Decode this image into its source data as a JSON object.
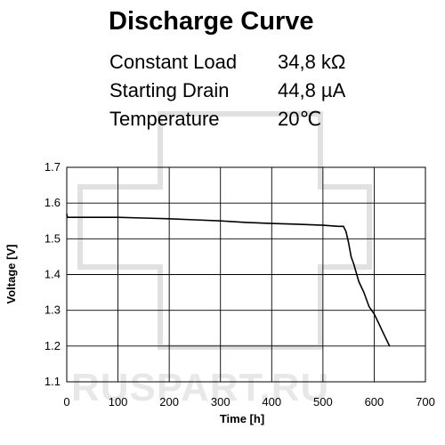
{
  "watermark": {
    "text": "RUSPART.RU"
  },
  "chart_data": {
    "type": "line",
    "title": "Discharge Curve",
    "specs": [
      {
        "label": "Constant Load",
        "value": "34,8 kΩ"
      },
      {
        "label": "Starting Drain",
        "value": "44,8 µA"
      },
      {
        "label": "Temperature",
        "value": "20℃"
      }
    ],
    "xlabel": "Time [h]",
    "ylabel": "Voltage [V]",
    "xlim": [
      0,
      700
    ],
    "ylim": [
      1.1,
      1.7
    ],
    "xticks": [
      0,
      100,
      200,
      300,
      400,
      500,
      600,
      700
    ],
    "yticks": [
      1.1,
      1.2,
      1.3,
      1.4,
      1.5,
      1.6,
      1.7
    ],
    "xtick_labels": [
      "0",
      "100",
      "200",
      "300",
      "400",
      "500",
      "600",
      "700"
    ],
    "ytick_labels": [
      "1.1",
      "1.2",
      "1.3",
      "1.4",
      "1.5",
      "1.6",
      "1.7"
    ],
    "grid": true,
    "series": [
      {
        "x": [
          0,
          1,
          3,
          10,
          50,
          100,
          150,
          200,
          250,
          300,
          350,
          400,
          450,
          500,
          530,
          540,
          545,
          550,
          555,
          560,
          570,
          580,
          590,
          600,
          610,
          620,
          630
        ],
        "y": [
          1.57,
          1.56,
          1.56,
          1.56,
          1.56,
          1.56,
          1.558,
          1.556,
          1.553,
          1.55,
          1.546,
          1.543,
          1.541,
          1.538,
          1.535,
          1.535,
          1.52,
          1.49,
          1.45,
          1.43,
          1.38,
          1.35,
          1.31,
          1.29,
          1.26,
          1.23,
          1.2
        ]
      }
    ]
  }
}
